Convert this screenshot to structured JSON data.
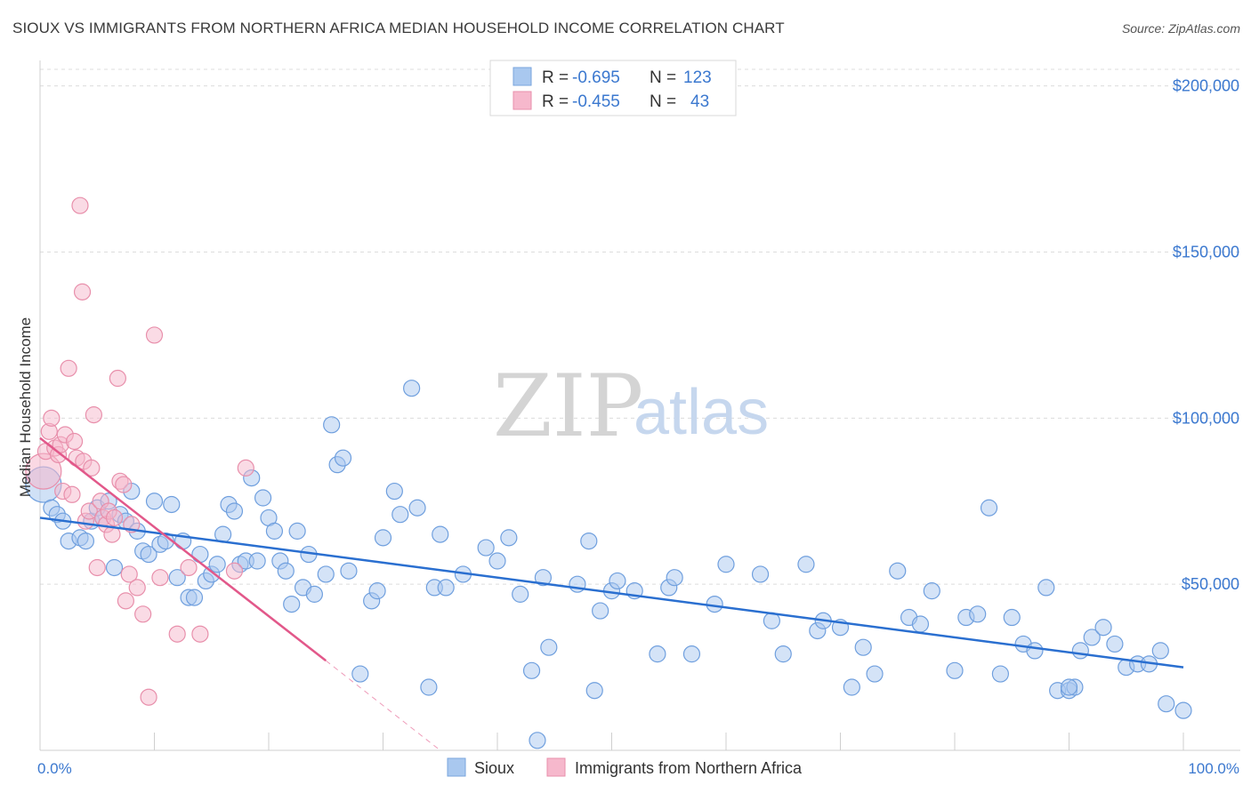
{
  "title": "SIOUX VS IMMIGRANTS FROM NORTHERN AFRICA MEDIAN HOUSEHOLD INCOME CORRELATION CHART",
  "source": "Source: ZipAtlas.com",
  "watermark": {
    "zip": "ZIP",
    "atlas": "atlas"
  },
  "legend": [
    {
      "r_label": "R = ",
      "r_value": "-0.695",
      "n_label": "N = ",
      "n_value": "123",
      "color": "#a9c8ef",
      "stroke": "#7aa6dd"
    },
    {
      "r_label": "R = ",
      "r_value": "-0.455",
      "n_label": "N = ",
      "n_value": "43",
      "color": "#f6b8cc",
      "stroke": "#e88fab"
    }
  ],
  "chart_data": {
    "type": "scatter",
    "ylabel": "Median Household Income",
    "x_tick_labels": [
      "0.0%",
      "100.0%"
    ],
    "y_tick_labels": [
      "$200,000",
      "$150,000",
      "$100,000",
      "$50,000"
    ],
    "y_ticks": [
      200000,
      150000,
      100000,
      50000
    ],
    "xlim": [
      0,
      100
    ],
    "ylim": [
      0,
      205000
    ],
    "grid": true,
    "series": [
      {
        "name": "Sioux",
        "color": "#a9c8ef",
        "stroke": "#6f9fde",
        "line_color": "#2a6fd0",
        "trend": {
          "x0": 0,
          "y0": 70000,
          "x1": 100,
          "y1": 25000
        },
        "points": [
          [
            0.3,
            80000
          ],
          [
            1,
            73000
          ],
          [
            1.5,
            71000
          ],
          [
            2,
            69000
          ],
          [
            2.5,
            63000
          ],
          [
            3.5,
            64000
          ],
          [
            4,
            63000
          ],
          [
            4.5,
            69000
          ],
          [
            5,
            73000
          ],
          [
            5.5,
            70000
          ],
          [
            6,
            75000
          ],
          [
            6.5,
            55000
          ],
          [
            7,
            71000
          ],
          [
            7.5,
            69000
          ],
          [
            8,
            78000
          ],
          [
            8.5,
            66000
          ],
          [
            9,
            60000
          ],
          [
            9.5,
            59000
          ],
          [
            10,
            75000
          ],
          [
            10.5,
            62000
          ],
          [
            11,
            63000
          ],
          [
            11.5,
            74000
          ],
          [
            12,
            52000
          ],
          [
            12.5,
            63000
          ],
          [
            13,
            46000
          ],
          [
            13.5,
            46000
          ],
          [
            14,
            59000
          ],
          [
            14.5,
            51000
          ],
          [
            15,
            53000
          ],
          [
            15.5,
            56000
          ],
          [
            16,
            65000
          ],
          [
            16.5,
            74000
          ],
          [
            17,
            72000
          ],
          [
            17.5,
            56000
          ],
          [
            18,
            57000
          ],
          [
            18.5,
            82000
          ],
          [
            19,
            57000
          ],
          [
            19.5,
            76000
          ],
          [
            20,
            70000
          ],
          [
            20.5,
            66000
          ],
          [
            21,
            57000
          ],
          [
            21.5,
            54000
          ],
          [
            22,
            44000
          ],
          [
            22.5,
            66000
          ],
          [
            23,
            49000
          ],
          [
            23.5,
            59000
          ],
          [
            24,
            47000
          ],
          [
            25,
            53000
          ],
          [
            25.5,
            98000
          ],
          [
            26,
            86000
          ],
          [
            26.5,
            88000
          ],
          [
            27,
            54000
          ],
          [
            28,
            23000
          ],
          [
            29,
            45000
          ],
          [
            29.5,
            48000
          ],
          [
            30,
            64000
          ],
          [
            31,
            78000
          ],
          [
            31.5,
            71000
          ],
          [
            32.5,
            109000
          ],
          [
            33,
            73000
          ],
          [
            34,
            19000
          ],
          [
            34.5,
            49000
          ],
          [
            35,
            65000
          ],
          [
            35.5,
            49000
          ],
          [
            37,
            53000
          ],
          [
            39,
            61000
          ],
          [
            40,
            57000
          ],
          [
            41,
            64000
          ],
          [
            42,
            47000
          ],
          [
            43,
            24000
          ],
          [
            43.5,
            3000
          ],
          [
            44,
            52000
          ],
          [
            44.5,
            31000
          ],
          [
            47,
            50000
          ],
          [
            48,
            63000
          ],
          [
            48.5,
            18000
          ],
          [
            49,
            42000
          ],
          [
            50,
            48000
          ],
          [
            50.5,
            51000
          ],
          [
            52,
            48000
          ],
          [
            54,
            29000
          ],
          [
            55,
            49000
          ],
          [
            55.5,
            52000
          ],
          [
            57,
            29000
          ],
          [
            59,
            44000
          ],
          [
            60,
            56000
          ],
          [
            63,
            53000
          ],
          [
            64,
            39000
          ],
          [
            65,
            29000
          ],
          [
            67,
            56000
          ],
          [
            68,
            36000
          ],
          [
            68.5,
            39000
          ],
          [
            70,
            37000
          ],
          [
            71,
            19000
          ],
          [
            72,
            31000
          ],
          [
            73,
            23000
          ],
          [
            75,
            54000
          ],
          [
            76,
            40000
          ],
          [
            77,
            38000
          ],
          [
            78,
            48000
          ],
          [
            80,
            24000
          ],
          [
            81,
            40000
          ],
          [
            82,
            41000
          ],
          [
            83,
            73000
          ],
          [
            84,
            23000
          ],
          [
            85,
            40000
          ],
          [
            86,
            32000
          ],
          [
            87,
            30000
          ],
          [
            88,
            49000
          ],
          [
            89,
            18000
          ],
          [
            90,
            18000
          ],
          [
            90.5,
            19000
          ],
          [
            91,
            30000
          ],
          [
            92,
            34000
          ],
          [
            93,
            37000
          ],
          [
            94,
            32000
          ],
          [
            95,
            25000
          ],
          [
            96,
            26000
          ],
          [
            97,
            26000
          ],
          [
            98,
            30000
          ],
          [
            98.5,
            14000
          ],
          [
            100,
            12000
          ],
          [
            90,
            19000
          ]
        ]
      },
      {
        "name": "Immigrants from Northern Africa",
        "color": "#f6b8cc",
        "stroke": "#e88fab",
        "line_color": "#e2588a",
        "trend": {
          "x0": 0,
          "y0": 94000,
          "x1": 25,
          "y1": 27000
        },
        "trend_dash": {
          "x0": 25,
          "y0": 27000,
          "x1": 35,
          "y1": 0
        },
        "points": [
          [
            0.3,
            84000
          ],
          [
            0.5,
            90000
          ],
          [
            0.8,
            96000
          ],
          [
            1,
            100000
          ],
          [
            1.3,
            91000
          ],
          [
            1.6,
            89000
          ],
          [
            1.8,
            92000
          ],
          [
            2,
            78000
          ],
          [
            2.2,
            95000
          ],
          [
            2.5,
            115000
          ],
          [
            2.8,
            77000
          ],
          [
            3,
            93000
          ],
          [
            3.2,
            88000
          ],
          [
            3.5,
            164000
          ],
          [
            3.7,
            138000
          ],
          [
            3.8,
            87000
          ],
          [
            4,
            69000
          ],
          [
            4.3,
            72000
          ],
          [
            4.5,
            85000
          ],
          [
            4.7,
            101000
          ],
          [
            5,
            55000
          ],
          [
            5.3,
            75000
          ],
          [
            5.5,
            70000
          ],
          [
            5.8,
            68000
          ],
          [
            6,
            72000
          ],
          [
            6.3,
            65000
          ],
          [
            6.5,
            70000
          ],
          [
            6.8,
            112000
          ],
          [
            7,
            81000
          ],
          [
            7.3,
            80000
          ],
          [
            7.5,
            45000
          ],
          [
            7.8,
            53000
          ],
          [
            8,
            68000
          ],
          [
            8.5,
            49000
          ],
          [
            9,
            41000
          ],
          [
            9.5,
            16000
          ],
          [
            10,
            125000
          ],
          [
            10.5,
            52000
          ],
          [
            12,
            35000
          ],
          [
            13,
            55000
          ],
          [
            14,
            35000
          ],
          [
            17,
            54000
          ],
          [
            18,
            85000
          ]
        ]
      }
    ]
  }
}
